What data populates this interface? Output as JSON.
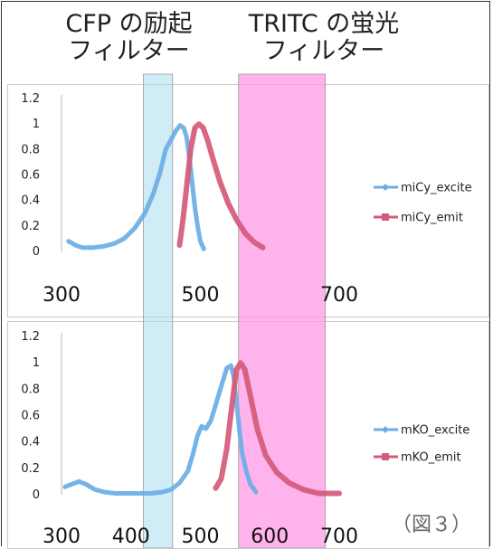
{
  "headers": {
    "cfp": {
      "line1": "CFP の励起",
      "line2": "フィルター"
    },
    "tritc": {
      "line1": "TRITC の蛍光",
      "line2": "フィルター"
    }
  },
  "filter_bands": {
    "cfp_excitation": {
      "range": [
        418,
        460
      ],
      "color": "#aadff0"
    },
    "tritc_emission": {
      "range": [
        555,
        680
      ],
      "color": "#ff99e6"
    }
  },
  "figure_label": "（図３）",
  "chart_data": [
    {
      "type": "line",
      "x_ticks": [
        300,
        500,
        700
      ],
      "y_ticks": [
        "0",
        "0.2",
        "0.4",
        "0.6",
        "0.8",
        "1",
        "1.2"
      ],
      "ylim": [
        0,
        1.2
      ],
      "xlim": [
        300,
        700
      ],
      "legend_position": "right",
      "series": [
        {
          "name": "miCy_excite",
          "color": "#6aaee6",
          "points": [
            [
              310,
              0.08
            ],
            [
              320,
              0.05
            ],
            [
              330,
              0.03
            ],
            [
              345,
              0.03
            ],
            [
              360,
              0.04
            ],
            [
              375,
              0.06
            ],
            [
              390,
              0.1
            ],
            [
              405,
              0.18
            ],
            [
              420,
              0.3
            ],
            [
              432,
              0.45
            ],
            [
              442,
              0.62
            ],
            [
              450,
              0.8
            ],
            [
              458,
              0.88
            ],
            [
              465,
              0.95
            ],
            [
              471,
              0.99
            ],
            [
              476,
              0.97
            ],
            [
              480,
              0.9
            ],
            [
              484,
              0.75
            ],
            [
              488,
              0.55
            ],
            [
              492,
              0.35
            ],
            [
              496,
              0.2
            ],
            [
              500,
              0.08
            ],
            [
              505,
              0.02
            ]
          ]
        },
        {
          "name": "miCy_emit",
          "color": "#d45a78",
          "points": [
            [
              470,
              0.05
            ],
            [
              475,
              0.25
            ],
            [
              480,
              0.5
            ],
            [
              486,
              0.8
            ],
            [
              492,
              0.97
            ],
            [
              498,
              1.0
            ],
            [
              504,
              0.97
            ],
            [
              510,
              0.88
            ],
            [
              518,
              0.73
            ],
            [
              528,
              0.55
            ],
            [
              540,
              0.38
            ],
            [
              552,
              0.25
            ],
            [
              565,
              0.14
            ],
            [
              578,
              0.07
            ],
            [
              590,
              0.03
            ]
          ]
        }
      ]
    },
    {
      "type": "line",
      "x_ticks": [
        300,
        400,
        500,
        600,
        700
      ],
      "y_ticks": [
        "0",
        "0.2",
        "0.4",
        "0.6",
        "0.8",
        "1",
        "1.2"
      ],
      "ylim": [
        0,
        1.2
      ],
      "xlim": [
        300,
        700
      ],
      "legend_position": "right",
      "series": [
        {
          "name": "mKO_excite",
          "color": "#6aaee6",
          "points": [
            [
              305,
              0.06
            ],
            [
              315,
              0.08
            ],
            [
              325,
              0.1
            ],
            [
              335,
              0.08
            ],
            [
              348,
              0.04
            ],
            [
              362,
              0.02
            ],
            [
              378,
              0.01
            ],
            [
              395,
              0.01
            ],
            [
              412,
              0.01
            ],
            [
              428,
              0.01
            ],
            [
              445,
              0.02
            ],
            [
              458,
              0.04
            ],
            [
              470,
              0.09
            ],
            [
              482,
              0.18
            ],
            [
              490,
              0.32
            ],
            [
              496,
              0.45
            ],
            [
              502,
              0.52
            ],
            [
              508,
              0.5
            ],
            [
              515,
              0.56
            ],
            [
              522,
              0.68
            ],
            [
              530,
              0.82
            ],
            [
              538,
              0.96
            ],
            [
              544,
              0.98
            ],
            [
              548,
              0.9
            ],
            [
              552,
              0.7
            ],
            [
              556,
              0.5
            ],
            [
              560,
              0.32
            ],
            [
              566,
              0.18
            ],
            [
              572,
              0.08
            ],
            [
              580,
              0.02
            ]
          ]
        },
        {
          "name": "mKO_emit",
          "color": "#d45a78",
          "points": [
            [
              522,
              0.05
            ],
            [
              530,
              0.12
            ],
            [
              538,
              0.35
            ],
            [
              546,
              0.7
            ],
            [
              552,
              0.95
            ],
            [
              558,
              1.0
            ],
            [
              564,
              0.95
            ],
            [
              572,
              0.75
            ],
            [
              582,
              0.5
            ],
            [
              594,
              0.3
            ],
            [
              610,
              0.17
            ],
            [
              628,
              0.09
            ],
            [
              648,
              0.04
            ],
            [
              670,
              0.01
            ],
            [
              690,
              0.01
            ],
            [
              700,
              0.01
            ]
          ]
        }
      ]
    }
  ]
}
